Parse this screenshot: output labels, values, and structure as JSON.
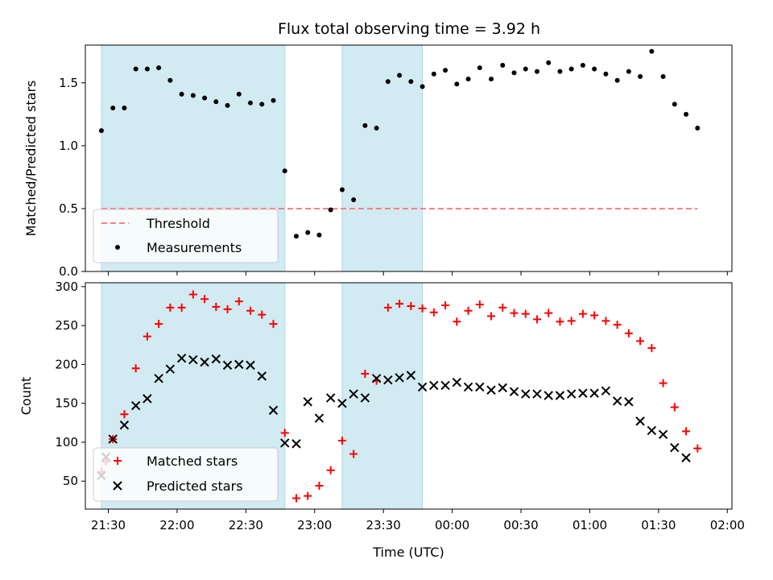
{
  "title": "Flux total observing time = 3.92 h",
  "colors": {
    "shade": "#add8e6",
    "threshold": "#ff7f7f",
    "matched": "#ff0000",
    "predicted": "#000000",
    "measurement": "#000000"
  },
  "chart_data": [
    {
      "type": "scatter",
      "ylabel": "Matched/Predicted stars",
      "xlabel": "",
      "ylim": [
        0,
        1.8
      ],
      "yticks": [
        0.0,
        0.5,
        1.0,
        1.5
      ],
      "ytick_labels": [
        "0.0",
        "0.5",
        "1.0",
        "1.5"
      ],
      "shaded_intervals": [
        [
          "21:27",
          "22:47"
        ],
        [
          "23:12",
          "23:47"
        ]
      ],
      "threshold": {
        "name": "Threshold",
        "value": 0.5,
        "style": "dashed"
      },
      "legend": {
        "placement": "lower-left",
        "entries": [
          "Threshold",
          "Measurements"
        ]
      },
      "series": [
        {
          "name": "Measurements",
          "marker": "dot",
          "points": [
            [
              "21:27",
              1.12
            ],
            [
              "21:32",
              1.3
            ],
            [
              "21:37",
              1.3
            ],
            [
              "21:42",
              1.61
            ],
            [
              "21:47",
              1.61
            ],
            [
              "21:52",
              1.62
            ],
            [
              "21:57",
              1.52
            ],
            [
              "22:02",
              1.41
            ],
            [
              "22:07",
              1.4
            ],
            [
              "22:12",
              1.38
            ],
            [
              "22:17",
              1.35
            ],
            [
              "22:22",
              1.32
            ],
            [
              "22:27",
              1.41
            ],
            [
              "22:32",
              1.34
            ],
            [
              "22:37",
              1.33
            ],
            [
              "22:42",
              1.36
            ],
            [
              "22:47",
              0.8
            ],
            [
              "22:52",
              0.28
            ],
            [
              "22:57",
              0.31
            ],
            [
              "23:02",
              0.29
            ],
            [
              "23:07",
              0.49
            ],
            [
              "23:12",
              0.65
            ],
            [
              "23:17",
              0.57
            ],
            [
              "23:22",
              1.16
            ],
            [
              "23:27",
              1.14
            ],
            [
              "23:32",
              1.51
            ],
            [
              "23:37",
              1.56
            ],
            [
              "23:42",
              1.51
            ],
            [
              "23:47",
              1.47
            ],
            [
              "23:52",
              1.57
            ],
            [
              "23:57",
              1.6
            ],
            [
              "00:02",
              1.49
            ],
            [
              "00:07",
              1.53
            ],
            [
              "00:12",
              1.62
            ],
            [
              "00:17",
              1.53
            ],
            [
              "00:22",
              1.64
            ],
            [
              "00:27",
              1.58
            ],
            [
              "00:32",
              1.61
            ],
            [
              "00:37",
              1.59
            ],
            [
              "00:42",
              1.66
            ],
            [
              "00:47",
              1.59
            ],
            [
              "00:52",
              1.61
            ],
            [
              "00:57",
              1.64
            ],
            [
              "01:02",
              1.61
            ],
            [
              "01:07",
              1.57
            ],
            [
              "01:12",
              1.52
            ],
            [
              "01:17",
              1.59
            ],
            [
              "01:22",
              1.55
            ],
            [
              "01:27",
              1.75
            ],
            [
              "01:32",
              1.55
            ],
            [
              "01:37",
              1.33
            ],
            [
              "01:42",
              1.25
            ],
            [
              "01:47",
              1.14
            ]
          ]
        }
      ]
    },
    {
      "type": "scatter",
      "ylabel": "Count",
      "xlabel": "Time (UTC)",
      "ylim": [
        14,
        305
      ],
      "xlim": [
        "21:20",
        "02:02"
      ],
      "yticks": [
        50,
        100,
        150,
        200,
        250,
        300
      ],
      "ytick_labels": [
        "50",
        "100",
        "150",
        "200",
        "250",
        "300"
      ],
      "xticks": [
        "21:30",
        "22:00",
        "22:30",
        "23:00",
        "23:30",
        "00:00",
        "00:30",
        "01:00",
        "01:30",
        "02:00"
      ],
      "shaded_intervals": [
        [
          "21:27",
          "22:47"
        ],
        [
          "23:12",
          "23:47"
        ]
      ],
      "legend": {
        "placement": "lower-left",
        "entries": [
          "Matched stars",
          "Predicted stars"
        ]
      },
      "series": [
        {
          "name": "Matched stars",
          "marker": "plus",
          "points": [
            [
              "21:27",
              62
            ],
            [
              "21:29",
              75
            ],
            [
              "21:32",
              104
            ],
            [
              "21:37",
              136
            ],
            [
              "21:42",
              195
            ],
            [
              "21:47",
              236
            ],
            [
              "21:52",
              252
            ],
            [
              "21:57",
              273
            ],
            [
              "22:02",
              273
            ],
            [
              "22:07",
              290
            ],
            [
              "22:12",
              284
            ],
            [
              "22:17",
              274
            ],
            [
              "22:22",
              271
            ],
            [
              "22:27",
              281
            ],
            [
              "22:32",
              269
            ],
            [
              "22:37",
              264
            ],
            [
              "22:42",
              252
            ],
            [
              "22:47",
              112
            ],
            [
              "22:52",
              28
            ],
            [
              "22:57",
              31
            ],
            [
              "23:02",
              44
            ],
            [
              "23:07",
              64
            ],
            [
              "23:12",
              102
            ],
            [
              "23:17",
              85
            ],
            [
              "23:22",
              188
            ],
            [
              "23:27",
              179
            ],
            [
              "23:32",
              273
            ],
            [
              "23:37",
              278
            ],
            [
              "23:42",
              275
            ],
            [
              "23:47",
              272
            ],
            [
              "23:52",
              267
            ],
            [
              "23:57",
              276
            ],
            [
              "00:02",
              255
            ],
            [
              "00:07",
              269
            ],
            [
              "00:12",
              277
            ],
            [
              "00:17",
              262
            ],
            [
              "00:22",
              273
            ],
            [
              "00:27",
              266
            ],
            [
              "00:32",
              265
            ],
            [
              "00:37",
              258
            ],
            [
              "00:42",
              266
            ],
            [
              "00:47",
              255
            ],
            [
              "00:52",
              256
            ],
            [
              "00:57",
              265
            ],
            [
              "01:02",
              263
            ],
            [
              "01:07",
              256
            ],
            [
              "01:12",
              251
            ],
            [
              "01:17",
              240
            ],
            [
              "01:22",
              230
            ],
            [
              "01:27",
              221
            ],
            [
              "01:32",
              176
            ],
            [
              "01:37",
              145
            ],
            [
              "01:42",
              114
            ],
            [
              "01:47",
              92
            ]
          ]
        },
        {
          "name": "Predicted stars",
          "marker": "x",
          "points": [
            [
              "21:27",
              57
            ],
            [
              "21:29",
              81
            ],
            [
              "21:32",
              104
            ],
            [
              "21:37",
              122
            ],
            [
              "21:42",
              147
            ],
            [
              "21:47",
              156
            ],
            [
              "21:52",
              182
            ],
            [
              "21:57",
              194
            ],
            [
              "22:02",
              208
            ],
            [
              "22:07",
              206
            ],
            [
              "22:12",
              203
            ],
            [
              "22:17",
              207
            ],
            [
              "22:22",
              199
            ],
            [
              "22:27",
              200
            ],
            [
              "22:32",
              199
            ],
            [
              "22:37",
              185
            ],
            [
              "22:42",
              141
            ],
            [
              "22:47",
              99
            ],
            [
              "22:52",
              98
            ],
            [
              "22:57",
              152
            ],
            [
              "23:02",
              131
            ],
            [
              "23:07",
              157
            ],
            [
              "23:12",
              150
            ],
            [
              "23:17",
              162
            ],
            [
              "23:22",
              157
            ],
            [
              "23:27",
              182
            ],
            [
              "23:32",
              180
            ],
            [
              "23:37",
              183
            ],
            [
              "23:42",
              186
            ],
            [
              "23:47",
              171
            ],
            [
              "23:52",
              173
            ],
            [
              "23:57",
              173
            ],
            [
              "00:02",
              177
            ],
            [
              "00:07",
              171
            ],
            [
              "00:12",
              171
            ],
            [
              "00:17",
              167
            ],
            [
              "00:22",
              170
            ],
            [
              "00:27",
              165
            ],
            [
              "00:32",
              162
            ],
            [
              "00:37",
              162
            ],
            [
              "00:42",
              160
            ],
            [
              "00:47",
              160
            ],
            [
              "00:52",
              162
            ],
            [
              "00:57",
              163
            ],
            [
              "01:02",
              163
            ],
            [
              "01:07",
              166
            ],
            [
              "01:12",
              153
            ],
            [
              "01:17",
              152
            ],
            [
              "01:22",
              127
            ],
            [
              "01:27",
              115
            ],
            [
              "01:32",
              110
            ],
            [
              "01:37",
              93
            ],
            [
              "01:42",
              80
            ]
          ]
        }
      ]
    }
  ]
}
